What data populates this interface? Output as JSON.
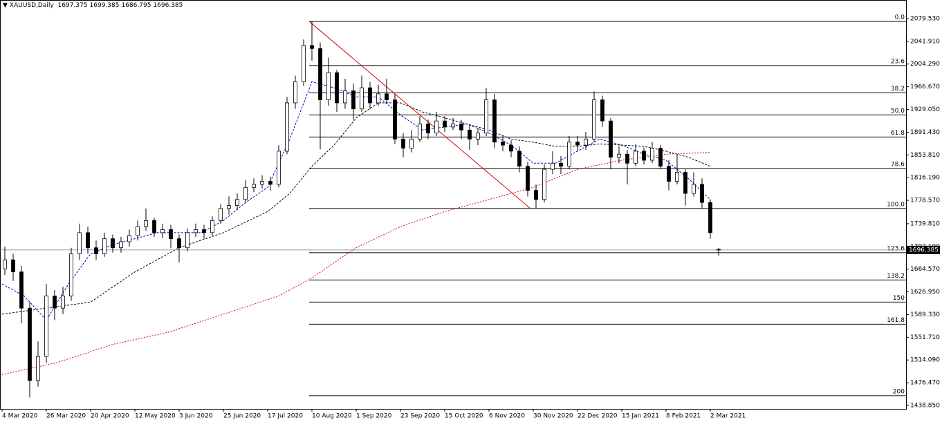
{
  "chart_data": {
    "type": "candlestick",
    "symbol": "XAUUSD,Daily",
    "xlim": [
      -0.75,
      326.75
    ],
    "ylim": [
      1433.1,
      2110.4
    ],
    "xticks": [
      {
        "value": 0,
        "label": "4 Mar 2020"
      },
      {
        "value": 16,
        "label": "26 Mar 2020"
      },
      {
        "value": 32,
        "label": "20 Apr 2020"
      },
      {
        "value": 48,
        "label": "12 May 2020"
      },
      {
        "value": 64,
        "label": "3 Jun 2020"
      },
      {
        "value": 80,
        "label": "25 Jun 2020"
      },
      {
        "value": 96,
        "label": "17 Jul 2020"
      },
      {
        "value": 112,
        "label": "10 Aug 2020"
      },
      {
        "value": 128,
        "label": "1 Sep 2020"
      },
      {
        "value": 144,
        "label": "23 Sep 2020"
      },
      {
        "value": 160,
        "label": "15 Oct 2020"
      },
      {
        "value": 176,
        "label": "6 Nov 2020"
      },
      {
        "value": 192,
        "label": "30 Nov 2020"
      },
      {
        "value": 208,
        "label": "22 Dec 2020"
      },
      {
        "value": 224,
        "label": "15 Jan 2021"
      },
      {
        "value": 240,
        "label": "8 Feb 2021"
      },
      {
        "value": 256,
        "label": "2 Mar 2021"
      }
    ],
    "yticks": [
      {
        "value": 2079.53,
        "label": "2079.530"
      },
      {
        "value": 2041.91,
        "label": "2041.910"
      },
      {
        "value": 2004.29,
        "label": "2004.290"
      },
      {
        "value": 1966.67,
        "label": "1966.670"
      },
      {
        "value": 1929.05,
        "label": "1929.050"
      },
      {
        "value": 1891.43,
        "label": "1891.430"
      },
      {
        "value": 1853.81,
        "label": "1853.810"
      },
      {
        "value": 1816.19,
        "label": "1816.190"
      },
      {
        "value": 1778.57,
        "label": "1778.570"
      },
      {
        "value": 1739.81,
        "label": "1739.810"
      },
      {
        "value": 1702.19,
        "label": "1702.190"
      },
      {
        "value": 1664.57,
        "label": "1664.570"
      },
      {
        "value": 1626.95,
        "label": "1626.950"
      },
      {
        "value": 1589.33,
        "label": "1589.330"
      },
      {
        "value": 1551.71,
        "label": "1551.710"
      },
      {
        "value": 1514.09,
        "label": "1514.090"
      },
      {
        "value": 1476.47,
        "label": "1476.470"
      },
      {
        "value": 1438.85,
        "label": "1438.850"
      }
    ],
    "candles": {
      "x": [
        1,
        4,
        7,
        10,
        13,
        16,
        19,
        22,
        25,
        28,
        31,
        34,
        37,
        40,
        43,
        46,
        49,
        52,
        55,
        58,
        61,
        64,
        67,
        70,
        73,
        76,
        79,
        82,
        85,
        88,
        91,
        94,
        97,
        100,
        103,
        106,
        109,
        112,
        115,
        118,
        121,
        124,
        127,
        130,
        133,
        136,
        139,
        142,
        145,
        148,
        151,
        154,
        157,
        160,
        163,
        166,
        169,
        172,
        175,
        178,
        181,
        184,
        187,
        190,
        193,
        196,
        199,
        202,
        205,
        208,
        211,
        214,
        217,
        220,
        223,
        226,
        229,
        232,
        235,
        238,
        241,
        244,
        247,
        250,
        253,
        256,
        259
      ],
      "open": [
        1665,
        1680,
        1660,
        1600,
        1480,
        1520,
        1620,
        1600,
        1620,
        1690,
        1725,
        1700,
        1690,
        1715,
        1700,
        1710,
        1720,
        1735,
        1745,
        1725,
        1730,
        1715,
        1700,
        1725,
        1730,
        1725,
        1745,
        1765,
        1770,
        1780,
        1800,
        1805,
        1810,
        1805,
        1860,
        1940,
        1975,
        2035,
        2030,
        1945,
        1990,
        1940,
        1960,
        1930,
        1965,
        1940,
        1955,
        1945,
        1880,
        1865,
        1880,
        1905,
        1890,
        1910,
        1900,
        1905,
        1895,
        1880,
        1890,
        1945,
        1875,
        1870,
        1860,
        1835,
        1795,
        1780,
        1830,
        1840,
        1835,
        1875,
        1870,
        1880,
        1945,
        1910,
        1850,
        1855,
        1840,
        1860,
        1845,
        1865,
        1835,
        1810,
        1825,
        1790,
        1805,
        1775,
        1697.375
      ],
      "high": [
        1702,
        1690,
        1670,
        1610,
        1545,
        1640,
        1630,
        1635,
        1700,
        1740,
        1735,
        1712,
        1725,
        1722,
        1718,
        1730,
        1745,
        1765,
        1750,
        1740,
        1738,
        1722,
        1732,
        1740,
        1738,
        1752,
        1772,
        1785,
        1790,
        1812,
        1815,
        1820,
        1818,
        1870,
        1950,
        1985,
        2045,
        2075,
        2040,
        2015,
        1995,
        1980,
        1972,
        1985,
        1975,
        1970,
        1980,
        1955,
        1890,
        1895,
        1918,
        1912,
        1925,
        1918,
        1915,
        1912,
        1902,
        1898,
        1965,
        1955,
        1885,
        1878,
        1868,
        1842,
        1805,
        1838,
        1860,
        1852,
        1885,
        1885,
        1892,
        1959,
        1952,
        1915,
        1868,
        1862,
        1872,
        1866,
        1875,
        1870,
        1845,
        1855,
        1830,
        1825,
        1815,
        1780,
        1699.385
      ],
      "low": [
        1655,
        1645,
        1575,
        1452,
        1470,
        1510,
        1580,
        1590,
        1612,
        1680,
        1690,
        1680,
        1685,
        1692,
        1692,
        1702,
        1712,
        1728,
        1718,
        1716,
        1700,
        1676,
        1694,
        1718,
        1715,
        1720,
        1740,
        1755,
        1762,
        1775,
        1792,
        1798,
        1795,
        1800,
        1855,
        1930,
        1968,
        2010,
        1863,
        1935,
        1925,
        1930,
        1912,
        1925,
        1930,
        1935,
        1940,
        1872,
        1850,
        1858,
        1875,
        1880,
        1885,
        1892,
        1895,
        1880,
        1862,
        1870,
        1885,
        1865,
        1860,
        1850,
        1825,
        1785,
        1765,
        1775,
        1822,
        1822,
        1830,
        1860,
        1862,
        1875,
        1900,
        1830,
        1840,
        1805,
        1835,
        1838,
        1840,
        1830,
        1795,
        1805,
        1770,
        1785,
        1765,
        1715,
        1686.795
      ],
      "close": [
        1680,
        1660,
        1600,
        1480,
        1520,
        1620,
        1600,
        1620,
        1690,
        1725,
        1700,
        1690,
        1715,
        1700,
        1710,
        1720,
        1735,
        1745,
        1725,
        1730,
        1715,
        1700,
        1725,
        1730,
        1725,
        1745,
        1765,
        1770,
        1780,
        1800,
        1805,
        1810,
        1805,
        1860,
        1940,
        1975,
        2035,
        2030,
        1945,
        1990,
        1940,
        1960,
        1930,
        1965,
        1940,
        1955,
        1945,
        1880,
        1865,
        1880,
        1905,
        1890,
        1910,
        1900,
        1905,
        1895,
        1880,
        1890,
        1945,
        1875,
        1870,
        1860,
        1835,
        1795,
        1780,
        1830,
        1840,
        1835,
        1875,
        1870,
        1880,
        1945,
        1910,
        1850,
        1855,
        1840,
        1860,
        1845,
        1865,
        1835,
        1810,
        1825,
        1790,
        1805,
        1775,
        1725,
        1696.385
      ]
    },
    "series": [
      {
        "color": "#0000cc",
        "dash": "3,2",
        "x": [
          0,
          8,
          16,
          24,
          32,
          40,
          48,
          56,
          64,
          72,
          80,
          88,
          96,
          104,
          112,
          120,
          128,
          136,
          144,
          152,
          160,
          168,
          176,
          184,
          192,
          200,
          208,
          216,
          224,
          232,
          240,
          248,
          256
        ],
        "values": [
          1640,
          1620,
          1580,
          1640,
          1690,
          1705,
          1715,
          1725,
          1725,
          1725,
          1745,
          1775,
          1800,
          1880,
          1975,
          1965,
          1950,
          1950,
          1920,
          1895,
          1900,
          1905,
          1890,
          1870,
          1840,
          1840,
          1860,
          1880,
          1870,
          1855,
          1845,
          1815,
          1780
        ]
      },
      {
        "color": "#000000",
        "dash": "3,2",
        "x": [
          0,
          16,
          32,
          48,
          64,
          80,
          96,
          104,
          112,
          120,
          128,
          136,
          144,
          152,
          160,
          168,
          176,
          184,
          192,
          200,
          208,
          216,
          224,
          232,
          240,
          248,
          256
        ],
        "values": [
          1590,
          1600,
          1610,
          1660,
          1700,
          1725,
          1760,
          1790,
          1835,
          1870,
          1915,
          1940,
          1940,
          1925,
          1915,
          1905,
          1895,
          1880,
          1875,
          1868,
          1868,
          1872,
          1870,
          1868,
          1860,
          1850,
          1835
        ]
      },
      {
        "color": "#dd0000",
        "dash": "2,2",
        "x": [
          0,
          20,
          40,
          60,
          80,
          100,
          112,
          128,
          144,
          160,
          176,
          192,
          208,
          224,
          240,
          256
        ],
        "values": [
          1490,
          1510,
          1540,
          1560,
          1590,
          1620,
          1650,
          1700,
          1735,
          1760,
          1780,
          1800,
          1830,
          1845,
          1855,
          1858
        ]
      }
    ],
    "trendline": {
      "x": [
        111,
        191
      ],
      "values": [
        2075,
        1765
      ],
      "color": "#dd0000"
    },
    "fibonacci": {
      "x": 111,
      "high": 2075,
      "low": 1765,
      "levels": [
        {
          "value": 0,
          "label": "0.0"
        },
        23.6,
        38.2,
        {
          "value": 50,
          "label": "50.0"
        },
        61.8,
        78.6,
        {
          "value": 100,
          "label": "100.0"
        },
        123.6,
        138.2,
        150,
        161.8,
        200
      ]
    }
  }
}
